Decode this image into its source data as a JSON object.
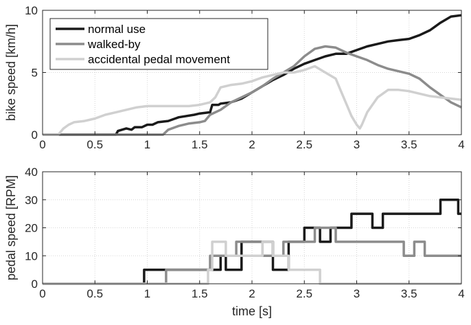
{
  "chart_data": [
    {
      "type": "line",
      "xlabel": "",
      "ylabel": "bike speed [km/h]",
      "xlim": [
        0,
        4
      ],
      "ylim": [
        0,
        10
      ],
      "xticks": [
        0,
        0.5,
        1,
        1.5,
        2,
        2.5,
        3,
        3.5,
        4
      ],
      "xtick_labels": [
        "0",
        "0.5",
        "1",
        "1.5",
        "2",
        "2.5",
        "3",
        "3.5",
        "4"
      ],
      "yticks": [
        0,
        5,
        10
      ],
      "ytick_labels": [
        "0",
        "5",
        "10"
      ],
      "grid": true,
      "legend_position": "top-left",
      "series": [
        {
          "name": "normal use",
          "color": "#1a1a1a",
          "x": [
            0,
            0.7,
            0.72,
            0.8,
            0.85,
            0.88,
            0.95,
            1.0,
            1.05,
            1.1,
            1.2,
            1.3,
            1.45,
            1.5,
            1.6,
            1.62,
            1.68,
            1.7,
            1.8,
            1.9,
            2.0,
            2.1,
            2.2,
            2.3,
            2.4,
            2.5,
            2.6,
            2.7,
            2.8,
            2.9,
            3.0,
            3.1,
            3.2,
            3.3,
            3.4,
            3.5,
            3.6,
            3.7,
            3.8,
            3.9,
            4.0
          ],
          "y": [
            0,
            0,
            0.3,
            0.5,
            0.4,
            0.6,
            0.6,
            0.8,
            0.8,
            1.0,
            1.1,
            1.4,
            1.6,
            1.7,
            1.8,
            2.4,
            2.4,
            2.5,
            2.6,
            2.9,
            3.4,
            3.9,
            4.4,
            4.8,
            5.3,
            5.7,
            6.0,
            6.3,
            6.5,
            6.5,
            6.8,
            7.1,
            7.3,
            7.5,
            7.6,
            7.7,
            8.0,
            8.4,
            9.0,
            9.5,
            9.6
          ]
        },
        {
          "name": "walked-by",
          "color": "#8c8c8c",
          "x": [
            0,
            1.15,
            1.2,
            1.3,
            1.4,
            1.5,
            1.55,
            1.6,
            1.7,
            1.8,
            1.9,
            2.0,
            2.1,
            2.2,
            2.3,
            2.4,
            2.5,
            2.6,
            2.7,
            2.8,
            2.9,
            3.0,
            3.1,
            3.2,
            3.3,
            3.4,
            3.5,
            3.6,
            3.7,
            3.8,
            3.9,
            4.0
          ],
          "y": [
            0,
            0,
            0.4,
            0.7,
            0.9,
            1.0,
            1.1,
            1.6,
            2.0,
            2.6,
            3.0,
            3.4,
            3.9,
            4.5,
            5.0,
            5.5,
            6.3,
            6.9,
            7.1,
            7.0,
            6.6,
            6.3,
            6.0,
            5.6,
            5.3,
            5.1,
            4.9,
            4.5,
            3.8,
            3.2,
            2.6,
            2.2
          ]
        },
        {
          "name": "accidental pedal movement",
          "color": "#d0d0d0",
          "x": [
            0,
            0.15,
            0.2,
            0.25,
            0.3,
            0.4,
            0.5,
            0.6,
            0.7,
            0.8,
            0.9,
            1.0,
            1.2,
            1.4,
            1.5,
            1.6,
            1.65,
            1.7,
            1.8,
            1.9,
            2.0,
            2.1,
            2.2,
            2.3,
            2.4,
            2.5,
            2.6,
            2.7,
            2.8,
            2.85,
            2.9,
            2.95,
            3.0,
            3.03,
            3.05,
            3.1,
            3.2,
            3.3,
            3.4,
            3.5,
            3.6,
            3.7,
            3.8,
            3.9,
            4.0
          ],
          "y": [
            0,
            0,
            0.5,
            0.8,
            1.0,
            1.1,
            1.3,
            1.6,
            1.8,
            2.0,
            2.2,
            2.3,
            2.3,
            2.3,
            2.4,
            2.6,
            3.0,
            3.8,
            4.0,
            4.1,
            4.3,
            4.6,
            4.8,
            5.0,
            5.0,
            5.2,
            5.5,
            5.0,
            4.5,
            3.5,
            2.5,
            1.5,
            0.8,
            0.5,
            0.8,
            1.8,
            3.0,
            3.6,
            3.6,
            3.5,
            3.3,
            3.1,
            3.0,
            2.9,
            2.8
          ]
        }
      ]
    },
    {
      "type": "line",
      "xlabel": "time [s]",
      "ylabel": "pedal speed [RPM]",
      "xlim": [
        0,
        4
      ],
      "ylim": [
        0,
        40
      ],
      "xticks": [
        0,
        0.5,
        1,
        1.5,
        2,
        2.5,
        3,
        3.5,
        4
      ],
      "xtick_labels": [
        "0",
        "0.5",
        "1",
        "1.5",
        "2",
        "2.5",
        "3",
        "3.5",
        "4"
      ],
      "yticks": [
        0,
        10,
        20,
        30,
        40
      ],
      "ytick_labels": [
        "0",
        "10",
        "20",
        "30",
        "40"
      ],
      "grid": true,
      "series": [
        {
          "name": "normal use",
          "color": "#1a1a1a",
          "x": [
            0,
            0.97,
            0.97,
            1.7,
            1.7,
            1.75,
            1.75,
            1.9,
            1.9,
            2.2,
            2.2,
            2.35,
            2.35,
            2.5,
            2.5,
            2.65,
            2.65,
            2.75,
            2.75,
            2.95,
            2.95,
            3.15,
            3.15,
            3.25,
            3.25,
            3.55,
            3.55,
            3.8,
            3.8,
            3.97,
            3.97,
            4.0
          ],
          "y": [
            0,
            0,
            5,
            5,
            10,
            10,
            5,
            5,
            15,
            15,
            5,
            5,
            15,
            15,
            20,
            20,
            15,
            15,
            20,
            20,
            25,
            25,
            20,
            20,
            25,
            25,
            25,
            25,
            30,
            30,
            25,
            25
          ]
        },
        {
          "name": "walked-by",
          "color": "#8c8c8c",
          "x": [
            0,
            1.18,
            1.18,
            1.6,
            1.6,
            1.85,
            1.85,
            2.1,
            2.1,
            2.3,
            2.3,
            2.6,
            2.6,
            2.8,
            2.8,
            3.0,
            3.0,
            3.45,
            3.45,
            3.55,
            3.55,
            3.65,
            3.65,
            3.85,
            3.85,
            4.0
          ],
          "y": [
            0,
            0,
            5,
            5,
            10,
            10,
            15,
            15,
            10,
            10,
            15,
            15,
            20,
            20,
            15,
            15,
            15,
            15,
            10,
            10,
            15,
            15,
            10,
            10,
            10,
            10
          ]
        },
        {
          "name": "accidental pedal movement",
          "color": "#d0d0d0",
          "x": [
            0,
            1.58,
            1.58,
            1.62,
            1.62,
            1.75,
            1.75,
            2.1,
            2.1,
            2.2,
            2.2,
            2.35,
            2.35,
            2.65,
            2.65,
            4.0
          ],
          "y": [
            0,
            0,
            5,
            5,
            15,
            15,
            10,
            10,
            15,
            15,
            10,
            10,
            5,
            5,
            0,
            0
          ]
        }
      ]
    }
  ]
}
